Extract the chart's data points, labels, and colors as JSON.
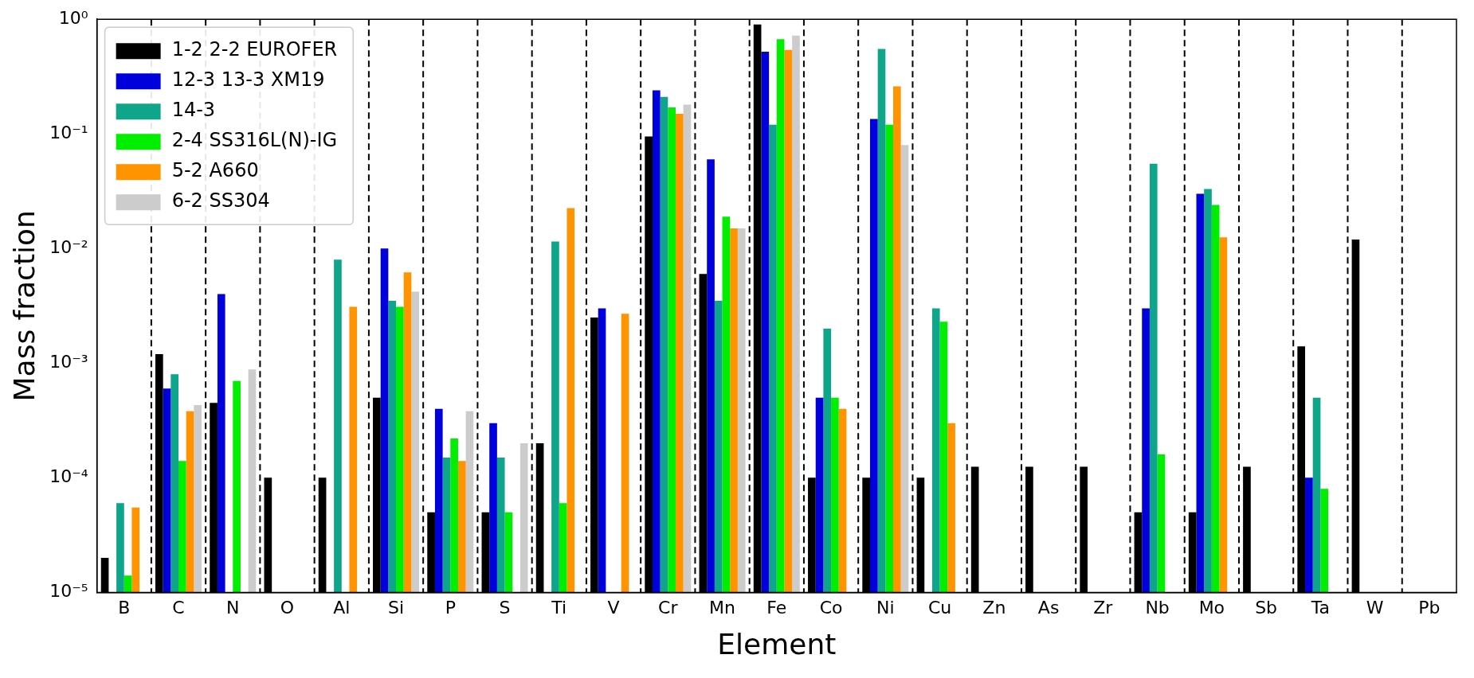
{
  "chart_data": {
    "type": "bar",
    "xlabel": "Element",
    "ylabel": "Mass fraction",
    "categories": [
      "B",
      "C",
      "N",
      "O",
      "Al",
      "Si",
      "P",
      "S",
      "Ti",
      "V",
      "Cr",
      "Mn",
      "Fe",
      "Co",
      "Ni",
      "Cu",
      "Zn",
      "As",
      "Zr",
      "Nb",
      "Mo",
      "Sb",
      "Ta",
      "W",
      "Pb"
    ],
    "series": [
      {
        "name": "1-2 2-2 EUROFER",
        "color": "#000000",
        "values": [
          2e-05,
          0.0012,
          0.00045,
          0.0001,
          0.0001,
          0.0005,
          5e-05,
          5e-05,
          0.0002,
          0.0025,
          0.095,
          0.006,
          0.9,
          0.0001,
          0.0001,
          0.0001,
          0.000125,
          0.000125,
          0.000125,
          5e-05,
          5e-05,
          0.000125,
          0.0014,
          0.012,
          null
        ]
      },
      {
        "name": "12-3 13-3 XM19",
        "color": "#0000dd",
        "values": [
          null,
          0.0006,
          0.004,
          null,
          null,
          0.01,
          0.0004,
          0.0003,
          null,
          0.003,
          0.24,
          0.06,
          0.52,
          0.0005,
          0.135,
          null,
          null,
          null,
          null,
          0.003,
          0.03,
          null,
          0.0001,
          null,
          null
        ]
      },
      {
        "name": "14-3",
        "color": "#0ea58a",
        "values": [
          6e-05,
          0.0008,
          null,
          null,
          0.008,
          0.0035,
          0.00015,
          0.00015,
          0.0115,
          null,
          0.21,
          0.0035,
          0.12,
          0.002,
          0.55,
          0.003,
          null,
          null,
          null,
          0.055,
          0.033,
          null,
          0.0005,
          null,
          null
        ]
      },
      {
        "name": "2-4 SS316L(N)-IG",
        "color": "#00ee00",
        "values": [
          1.4e-05,
          0.00014,
          0.0007,
          null,
          null,
          0.0031,
          0.00022,
          5e-05,
          6e-05,
          null,
          0.17,
          0.019,
          0.67,
          0.0005,
          0.12,
          0.0023,
          null,
          null,
          null,
          0.00016,
          0.024,
          null,
          8e-05,
          null,
          null
        ]
      },
      {
        "name": "5-2 A660",
        "color": "#ff9400",
        "values": [
          5.5e-05,
          0.00038,
          null,
          null,
          0.0031,
          0.0062,
          0.00014,
          null,
          0.0225,
          0.0027,
          0.15,
          0.015,
          0.54,
          0.0004,
          0.26,
          0.0003,
          null,
          null,
          null,
          null,
          0.0125,
          null,
          null,
          null,
          null
        ]
      },
      {
        "name": "6-2 SS304",
        "color": "#cccccc",
        "values": [
          null,
          0.00043,
          0.00088,
          null,
          null,
          0.0042,
          0.00038,
          0.0002,
          null,
          null,
          0.18,
          0.015,
          0.72,
          null,
          0.08,
          null,
          null,
          null,
          null,
          null,
          null,
          null,
          null,
          null,
          null
        ]
      }
    ],
    "log": true,
    "ylim": [
      1e-05,
      1
    ],
    "yticks": [
      {
        "value": 1e-05,
        "label": "10⁻⁵"
      },
      {
        "value": 0.0001,
        "label": "10⁻⁴"
      },
      {
        "value": 0.001,
        "label": "10⁻³"
      },
      {
        "value": 0.01,
        "label": "10⁻²"
      },
      {
        "value": 0.1,
        "label": "10⁻¹"
      },
      {
        "value": 1,
        "label": "10⁰"
      }
    ],
    "grid": "x",
    "legend": "top left"
  }
}
